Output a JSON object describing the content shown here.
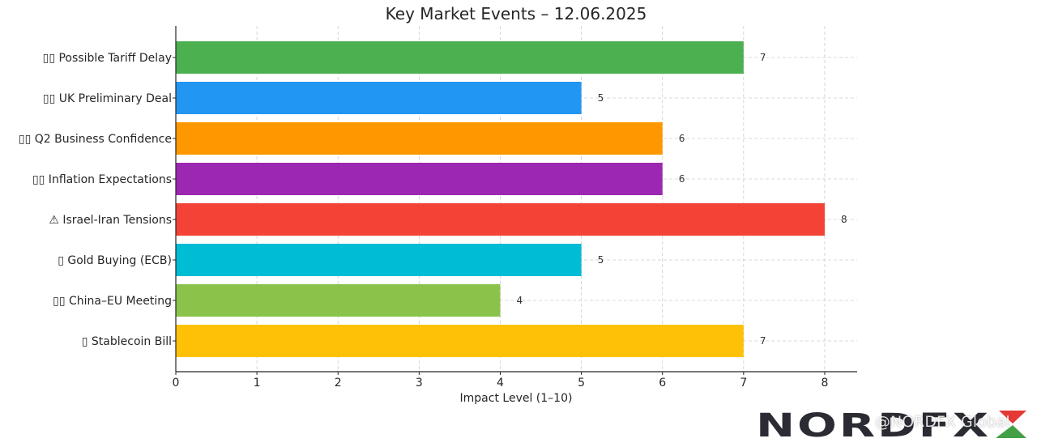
{
  "chart_data": {
    "type": "bar",
    "orientation": "horizontal",
    "title": "Key Market Events – 12.06.2025",
    "xlabel": "Impact Level (1–10)",
    "ylabel": "",
    "xlim": [
      0,
      8.4
    ],
    "xticks": [
      0,
      1,
      2,
      3,
      4,
      5,
      6,
      7,
      8
    ],
    "grid": true,
    "legend": "none",
    "categories": [
      "📉🇺🇸 Possible Tariff Delay",
      "🇬🇧🇺🇸 UK Preliminary Deal",
      "🇦🇺 Q2 Business Confidence",
      "🇺🇸 Inflation Expectations",
      "⚠ Israel-Iran Tensions",
      "💰 Gold Buying (ECB)",
      "🇨🇳🇪🇺 China–EU Meeting",
      "💵 Stablecoin Bill"
    ],
    "category_prefix_shown": [
      "▯▯",
      "▯▯",
      "▯▯",
      "▯▯",
      "⚠",
      "▯",
      "▯▯",
      "▯"
    ],
    "category_text": [
      "Possible Tariff Delay",
      "UK Preliminary Deal",
      "Q2 Business Confidence",
      "Inflation Expectations",
      "Israel-Iran Tensions",
      "Gold Buying (ECB)",
      "China–EU Meeting",
      "Stablecoin Bill"
    ],
    "values": [
      7,
      5,
      6,
      6,
      8,
      5,
      4,
      7
    ],
    "colors": [
      "#4caf50",
      "#2196f3",
      "#ff9800",
      "#9c27b0",
      "#f44336",
      "#00bcd4",
      "#8bc34a",
      "#ffc107"
    ]
  },
  "branding": {
    "logo_text": "NORDFX",
    "logo_accent_colors": [
      "#e53935",
      "#43a047"
    ],
    "watermark": "@NORDFX Global"
  }
}
